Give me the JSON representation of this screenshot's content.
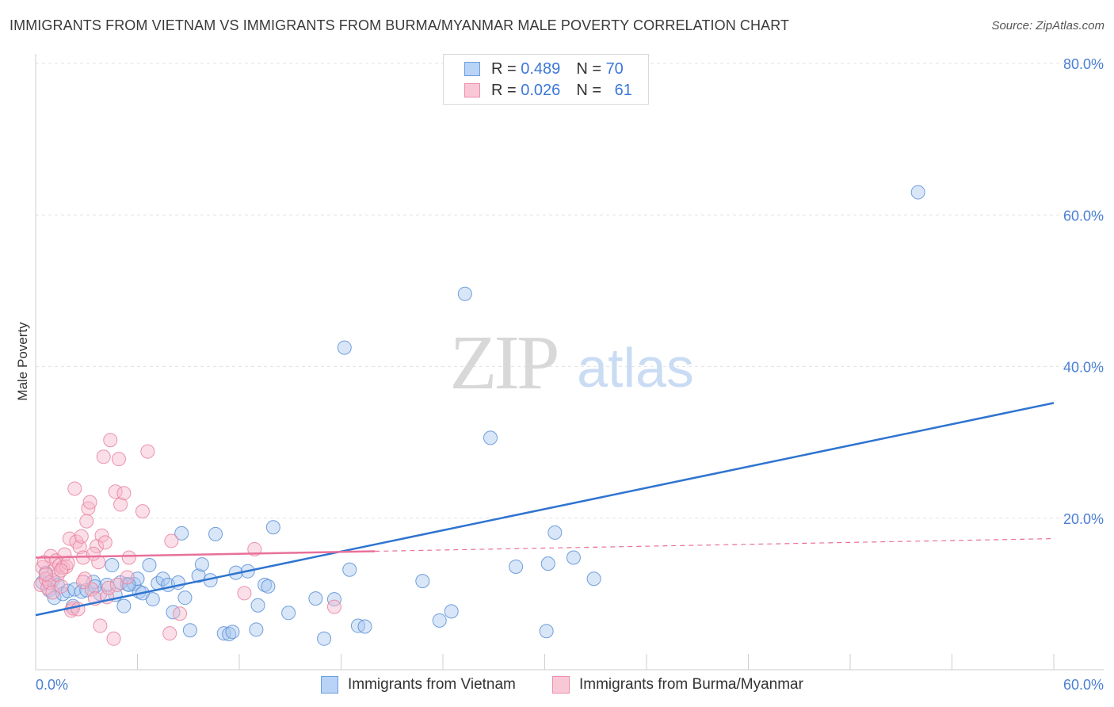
{
  "header": {
    "title": "IMMIGRANTS FROM VIETNAM VS IMMIGRANTS FROM BURMA/MYANMAR MALE POVERTY CORRELATION CHART",
    "source": "Source: ZipAtlas.com"
  },
  "watermark": {
    "zip": "ZIP",
    "atlas": "atlas"
  },
  "legend": {
    "r_label": "R =",
    "n_label": "N =",
    "rows": [
      {
        "r": "0.489",
        "n": "70"
      },
      {
        "r": "0.026",
        "n": "61"
      }
    ]
  },
  "colors": {
    "series1_fill": "#a9c8f0",
    "series1_stroke": "#5a8fd6",
    "series1_line": "#2f74d0",
    "series2_fill": "#f6b8cb",
    "series2_stroke": "#e8829f",
    "series2_line": "#e8709a",
    "tick_color": "#4a7fd4",
    "grid": "#e3e3e3"
  },
  "chart_data": {
    "type": "scatter",
    "title": "IMMIGRANTS FROM VIETNAM VS IMMIGRANTS FROM BURMA/MYANMAR MALE POVERTY CORRELATION CHART",
    "xlabel": "",
    "ylabel": "Male Poverty",
    "xlim": [
      0,
      60
    ],
    "ylim": [
      0,
      80
    ],
    "x_tick_labels": [
      "0.0%",
      "60.0%"
    ],
    "y_ticks": [
      20,
      40,
      60,
      80
    ],
    "y_tick_labels": [
      "20.0%",
      "40.0%",
      "60.0%",
      "80.0%"
    ],
    "grid": true,
    "legend_position": "top-center",
    "series": [
      {
        "name": "Immigrants from Vietnam",
        "r": 0.489,
        "n": 70,
        "trend": {
          "x": [
            0,
            60
          ],
          "y": [
            7.2,
            35.2
          ]
        },
        "points": [
          [
            0.4,
            11.5
          ],
          [
            0.6,
            12.8
          ],
          [
            0.8,
            10.5
          ],
          [
            1.0,
            11.8
          ],
          [
            1.1,
            9.5
          ],
          [
            1.3,
            11.2
          ],
          [
            1.6,
            10.0
          ],
          [
            1.9,
            10.4
          ],
          [
            2.2,
            8.4
          ],
          [
            2.3,
            10.6
          ],
          [
            2.7,
            10.3
          ],
          [
            3.0,
            10.5
          ],
          [
            3.4,
            11.6
          ],
          [
            3.8,
            10.0
          ],
          [
            4.2,
            11.2
          ],
          [
            4.5,
            13.8
          ],
          [
            4.7,
            9.9
          ],
          [
            5.0,
            11.5
          ],
          [
            5.2,
            8.4
          ],
          [
            5.4,
            11.3
          ],
          [
            5.8,
            11.3
          ],
          [
            6.0,
            12.0
          ],
          [
            6.1,
            10.3
          ],
          [
            6.3,
            10.1
          ],
          [
            6.7,
            13.8
          ],
          [
            6.9,
            9.3
          ],
          [
            7.2,
            11.4
          ],
          [
            7.5,
            12.0
          ],
          [
            7.8,
            11.2
          ],
          [
            8.1,
            7.6
          ],
          [
            8.4,
            11.5
          ],
          [
            8.6,
            18.0
          ],
          [
            8.8,
            9.5
          ],
          [
            9.1,
            5.2
          ],
          [
            9.6,
            12.4
          ],
          [
            9.8,
            13.9
          ],
          [
            10.3,
            11.8
          ],
          [
            10.6,
            17.9
          ],
          [
            11.1,
            4.8
          ],
          [
            11.4,
            4.7
          ],
          [
            11.6,
            5.0
          ],
          [
            11.8,
            12.8
          ],
          [
            12.5,
            13.0
          ],
          [
            13.0,
            5.3
          ],
          [
            13.1,
            8.5
          ],
          [
            13.5,
            11.2
          ],
          [
            13.7,
            11.0
          ],
          [
            14.0,
            18.8
          ],
          [
            14.9,
            7.5
          ],
          [
            16.5,
            9.4
          ],
          [
            17.0,
            4.1
          ],
          [
            17.6,
            9.3
          ],
          [
            18.2,
            42.5
          ],
          [
            18.5,
            13.2
          ],
          [
            19.0,
            5.8
          ],
          [
            19.4,
            5.7
          ],
          [
            22.8,
            11.7
          ],
          [
            23.8,
            6.5
          ],
          [
            24.5,
            7.7
          ],
          [
            25.3,
            49.6
          ],
          [
            26.8,
            30.6
          ],
          [
            28.3,
            13.6
          ],
          [
            30.1,
            5.1
          ],
          [
            30.2,
            14.0
          ],
          [
            30.6,
            18.1
          ],
          [
            31.7,
            14.8
          ],
          [
            32.9,
            12.0
          ],
          [
            52.0,
            63.0
          ],
          [
            3.5,
            11.0
          ],
          [
            5.5,
            11.2
          ]
        ]
      },
      {
        "name": "Immigrants from Burma/Myanmar",
        "r": 0.026,
        "n": 61,
        "trend": {
          "x": [
            0,
            60
          ],
          "y": [
            14.8,
            17.3
          ],
          "solid_until": 20
        },
        "points": [
          [
            0.3,
            11.2
          ],
          [
            0.4,
            13.5
          ],
          [
            0.5,
            14.2
          ],
          [
            0.6,
            12.0
          ],
          [
            0.7,
            10.8
          ],
          [
            0.8,
            11.5
          ],
          [
            0.9,
            15.0
          ],
          [
            1.0,
            10.2
          ],
          [
            1.1,
            13.2
          ],
          [
            1.2,
            14.4
          ],
          [
            1.3,
            12.5
          ],
          [
            1.4,
            13.8
          ],
          [
            1.5,
            11.0
          ],
          [
            1.6,
            13.5
          ],
          [
            1.7,
            15.2
          ],
          [
            1.8,
            13.6
          ],
          [
            1.9,
            14.1
          ],
          [
            2.0,
            17.3
          ],
          [
            2.1,
            7.8
          ],
          [
            2.2,
            8.1
          ],
          [
            2.3,
            23.9
          ],
          [
            2.4,
            16.9
          ],
          [
            2.5,
            8.0
          ],
          [
            2.6,
            16.2
          ],
          [
            2.7,
            17.6
          ],
          [
            2.8,
            14.8
          ],
          [
            2.9,
            12.0
          ],
          [
            3.0,
            19.6
          ],
          [
            3.1,
            21.3
          ],
          [
            3.2,
            22.1
          ],
          [
            3.3,
            10.6
          ],
          [
            3.5,
            9.4
          ],
          [
            3.6,
            16.3
          ],
          [
            3.7,
            14.2
          ],
          [
            3.8,
            5.8
          ],
          [
            3.9,
            17.7
          ],
          [
            4.0,
            28.1
          ],
          [
            4.1,
            16.8
          ],
          [
            4.2,
            9.6
          ],
          [
            4.3,
            10.8
          ],
          [
            4.4,
            30.3
          ],
          [
            4.6,
            4.1
          ],
          [
            4.7,
            23.5
          ],
          [
            4.8,
            11.2
          ],
          [
            4.9,
            27.8
          ],
          [
            5.0,
            21.8
          ],
          [
            5.2,
            23.3
          ],
          [
            5.4,
            12.2
          ],
          [
            5.5,
            14.8
          ],
          [
            6.3,
            20.9
          ],
          [
            6.6,
            28.8
          ],
          [
            7.9,
            4.8
          ],
          [
            8.0,
            17.0
          ],
          [
            8.5,
            7.4
          ],
          [
            12.3,
            10.1
          ],
          [
            12.9,
            15.9
          ],
          [
            17.6,
            8.3
          ],
          [
            0.6,
            12.6
          ],
          [
            1.5,
            13.1
          ],
          [
            2.8,
            11.6
          ],
          [
            3.4,
            15.3
          ]
        ]
      }
    ]
  }
}
